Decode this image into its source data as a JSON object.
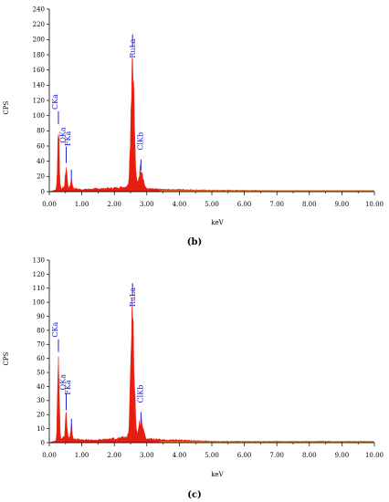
{
  "chart_data": [
    {
      "panel": "(b)",
      "type": "area",
      "xlabel": "keV",
      "ylabel": "CPS",
      "xlim": [
        0.0,
        10.0
      ],
      "ylim": [
        0,
        240
      ],
      "x_ticks": [
        "0.00",
        "1.00",
        "2.00",
        "3.00",
        "4.00",
        "5.00",
        "6.00",
        "7.00",
        "8.00",
        "9.00",
        "10.00"
      ],
      "y_ticks": [
        "0",
        "20",
        "40",
        "60",
        "80",
        "100",
        "120",
        "140",
        "160",
        "180",
        "200",
        "220",
        "240"
      ],
      "peaks": [
        {
          "label": "CKa",
          "energy": 0.28,
          "cps": 84
        },
        {
          "label": "OKa",
          "energy": 0.52,
          "cps": 28
        },
        {
          "label": "FKa",
          "energy": 0.68,
          "cps": 12
        },
        {
          "label": "RuLa",
          "energy": 2.56,
          "cps": 178
        },
        {
          "label": "ClKb",
          "energy": 2.82,
          "cps": 28
        }
      ],
      "background": [
        [
          0.0,
          0
        ],
        [
          0.5,
          6
        ],
        [
          1.0,
          3
        ],
        [
          1.5,
          4
        ],
        [
          2.0,
          5
        ],
        [
          2.4,
          7
        ],
        [
          3.0,
          4
        ],
        [
          3.5,
          3
        ],
        [
          4.0,
          3
        ],
        [
          5.0,
          2
        ],
        [
          6.0,
          2
        ],
        [
          7.0,
          1
        ],
        [
          8.0,
          1
        ],
        [
          9.0,
          1
        ],
        [
          10.0,
          1
        ]
      ],
      "fill_color": "#e61e10",
      "label_color": "#2222cc",
      "grid": false
    },
    {
      "panel": "(c)",
      "type": "area",
      "xlabel": "keV",
      "ylabel": "CPS",
      "xlim": [
        0.0,
        10.0
      ],
      "ylim": [
        0,
        130
      ],
      "x_ticks": [
        "0.00",
        "1.00",
        "2.00",
        "3.00",
        "4.00",
        "5.00",
        "6.00",
        "7.00",
        "8.00",
        "9.00",
        "10.00"
      ],
      "y_ticks": [
        "0",
        "10",
        "20",
        "30",
        "40",
        "50",
        "60",
        "70",
        "80",
        "90",
        "100",
        "110",
        "120",
        "130"
      ],
      "peaks": [
        {
          "label": "CKa",
          "energy": 0.28,
          "cps": 62
        },
        {
          "label": "OKa",
          "energy": 0.52,
          "cps": 18
        },
        {
          "label": "FKa",
          "energy": 0.68,
          "cps": 8
        },
        {
          "label": "RuLa",
          "energy": 2.56,
          "cps": 98
        },
        {
          "label": "ClKb",
          "energy": 2.82,
          "cps": 14
        }
      ],
      "background": [
        [
          0.0,
          0
        ],
        [
          0.5,
          4
        ],
        [
          1.0,
          2
        ],
        [
          1.5,
          2
        ],
        [
          2.0,
          3
        ],
        [
          2.4,
          4
        ],
        [
          3.0,
          3
        ],
        [
          3.5,
          2
        ],
        [
          4.0,
          2
        ],
        [
          5.0,
          1
        ],
        [
          6.0,
          1
        ],
        [
          7.0,
          1
        ],
        [
          8.0,
          1
        ],
        [
          9.0,
          1
        ],
        [
          10.0,
          1
        ]
      ],
      "fill_color": "#e61e10",
      "label_color": "#2222cc",
      "grid": false
    }
  ]
}
